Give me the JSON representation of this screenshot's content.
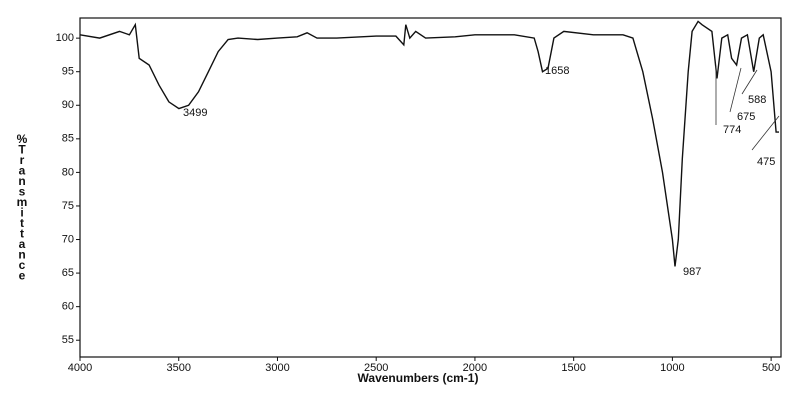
{
  "chart_data": {
    "type": "line",
    "x_label": "Wavenumbers (cm-1)",
    "y_label": "%Transmittance",
    "xlim": [
      4000,
      450
    ],
    "ylim": [
      52.5,
      103
    ],
    "xticks": [
      4000,
      3500,
      3000,
      2500,
      2000,
      1500,
      1000,
      500
    ],
    "yticks": [
      55,
      60,
      65,
      70,
      75,
      80,
      85,
      90,
      95,
      100
    ],
    "series": [
      {
        "color": "#111111",
        "x": [
          4000,
          3900,
          3800,
          3750,
          3720,
          3700,
          3650,
          3600,
          3550,
          3499,
          3450,
          3400,
          3350,
          3300,
          3250,
          3200,
          3100,
          3000,
          2900,
          2850,
          2800,
          2700,
          2500,
          2400,
          2360,
          2350,
          2330,
          2300,
          2250,
          2100,
          2000,
          1800,
          1700,
          1680,
          1658,
          1630,
          1600,
          1550,
          1400,
          1250,
          1200,
          1150,
          1100,
          1050,
          1000,
          987,
          970,
          950,
          920,
          900,
          870,
          850,
          800,
          774,
          750,
          720,
          700,
          675,
          650,
          620,
          600,
          588,
          560,
          540,
          500,
          475,
          460
        ],
        "values": [
          100.5,
          100,
          101,
          100.5,
          102,
          97,
          96,
          93,
          90.5,
          89.5,
          90,
          92,
          95,
          98,
          99.8,
          100,
          99.8,
          100,
          100.2,
          100.8,
          100,
          100,
          100.3,
          100.3,
          99,
          102,
          100,
          101,
          100,
          100.2,
          100.5,
          100.5,
          100,
          98,
          95,
          95.5,
          100,
          101,
          100.5,
          100.5,
          100,
          95,
          88,
          80,
          70,
          66,
          70,
          82,
          95,
          101,
          102.5,
          102,
          101,
          94,
          100,
          100.5,
          97,
          96,
          100,
          100.5,
          97,
          95,
          100,
          100.5,
          95,
          86,
          86
        ]
      }
    ],
    "peaks": [
      3499,
      1658,
      987,
      774,
      675,
      588,
      475
    ]
  }
}
